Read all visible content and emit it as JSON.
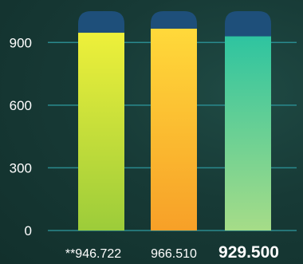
{
  "chart_data": {
    "type": "bar",
    "categories": [
      "**946.722",
      "966.510",
      "929.500"
    ],
    "values": [
      946.722,
      966.51,
      929.5
    ],
    "value_labels": [
      "**946.722",
      "966.510",
      "929.500"
    ],
    "highlighted_index": 2,
    "ylim": [
      0,
      1050
    ],
    "yticks": [
      0,
      300,
      600,
      900
    ],
    "ytick_labels": [
      "0",
      "300",
      "600",
      "900"
    ],
    "grid": true,
    "legend": "none",
    "colors": {
      "bar_1": [
        "#eef03a",
        "#9ccc3a"
      ],
      "bar_2": [
        "#ffd93a",
        "#f7a028"
      ],
      "bar_3": [
        "#2ec4a0",
        "#a6dc88"
      ],
      "bar_cap": "#1e4f7a",
      "grid": "#2a8a8e"
    }
  }
}
